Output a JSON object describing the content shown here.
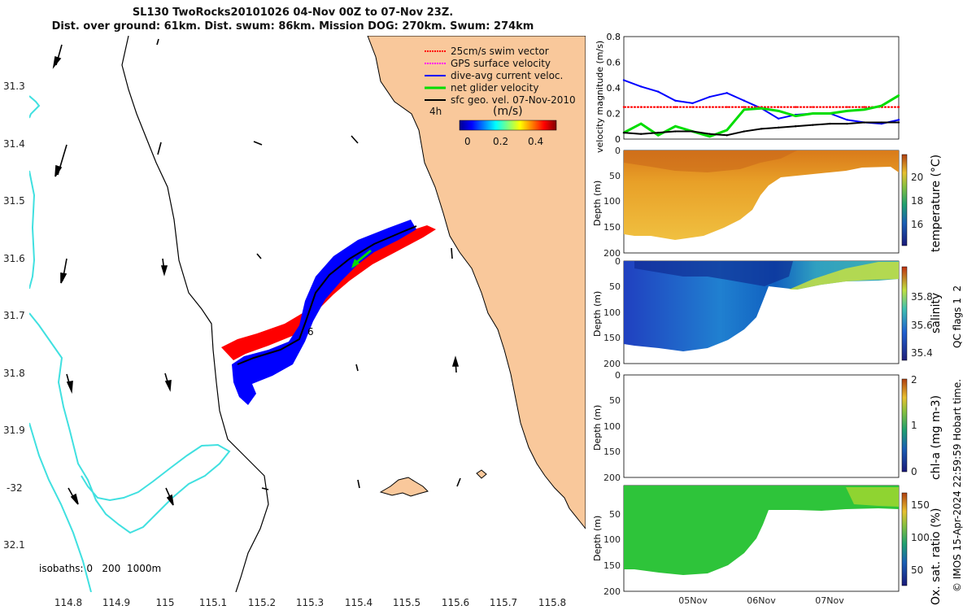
{
  "title": {
    "line1": "SL130 TwoRocks20101026 04-Nov 00Z to 07-Nov 23Z.",
    "line2": "Dist. over ground: 61km. Dist. swum: 86km. Mission DOG: 270km. Swum: 274km"
  },
  "map": {
    "lat_ticks": [
      "31.3",
      "31.4",
      "31.5",
      "31.6",
      "31.7",
      "31.8",
      "31.9",
      "-32",
      "32.1"
    ],
    "lon_ticks": [
      "114.8",
      "114.9",
      "115",
      "115.1",
      "115.2",
      "115.3",
      "115.4",
      "115.5",
      "115.6",
      "115.7",
      "115.8"
    ],
    "legend": [
      {
        "label": "25cm/s swim vector",
        "color": "#ff0000"
      },
      {
        "label": "GPS surface velocity",
        "color": "#ff00ff"
      },
      {
        "label": "dive-avg current veloc.",
        "color": "#0000ff"
      },
      {
        "label": "net glider velocity",
        "color": "#00dd00"
      },
      {
        "label": "sfc geo. vel. 07-Nov-2010",
        "color": "#000000"
      }
    ],
    "time_marker": "4h",
    "colorbar": {
      "unit": "(m/s)",
      "ticks": [
        "0",
        "0.2",
        "0.4"
      ]
    },
    "track_label": "6",
    "isobaths_label": "isobaths: 0   200  1000m",
    "colors": {
      "land": "#f9c89b",
      "isobath": "#40e0e0",
      "dive_avg": "#0000ff",
      "swim": "#ff0000",
      "net": "#00dd00"
    }
  },
  "chart_data": [
    {
      "type": "line",
      "title": "",
      "ylabel": "velocity magnitude (m/s)",
      "ylim": [
        0,
        0.8
      ],
      "yticks": [
        "0",
        "0.2",
        "0.4",
        "0.6",
        "0.8"
      ],
      "x": [
        0,
        6,
        12,
        18,
        24,
        30,
        36,
        42,
        48,
        54,
        60,
        66,
        72,
        78,
        84,
        90,
        96
      ],
      "series": [
        {
          "name": "dive-avg current veloc.",
          "color": "#0000ff",
          "values": [
            0.46,
            0.41,
            0.37,
            0.3,
            0.28,
            0.33,
            0.36,
            0.3,
            0.24,
            0.16,
            0.19,
            0.2,
            0.2,
            0.15,
            0.13,
            0.12,
            0.15
          ]
        },
        {
          "name": "25cm/s swim vector",
          "color": "#ff0000",
          "values": [
            0.25,
            0.25,
            0.25,
            0.25,
            0.25,
            0.25,
            0.25,
            0.25,
            0.25,
            0.25,
            0.25,
            0.25,
            0.25,
            0.25,
            0.25,
            0.25,
            0.25
          ]
        },
        {
          "name": "net glider velocity",
          "color": "#00dd00",
          "values": [
            0.05,
            0.12,
            0.03,
            0.1,
            0.06,
            0.02,
            0.07,
            0.23,
            0.24,
            0.22,
            0.18,
            0.2,
            0.2,
            0.22,
            0.23,
            0.26,
            0.34
          ]
        },
        {
          "name": "sfc geo. vel.",
          "color": "#000000",
          "values": [
            0.05,
            0.04,
            0.05,
            0.06,
            0.06,
            0.04,
            0.03,
            0.06,
            0.08,
            0.09,
            0.1,
            0.11,
            0.12,
            0.12,
            0.13,
            0.13,
            0.13
          ]
        }
      ]
    },
    {
      "type": "heatmap",
      "variable": "temperature (°C)",
      "ylabel": "Depth (m)",
      "ylim": [
        200,
        0
      ],
      "yticks": [
        "0",
        "50",
        "100",
        "150",
        "200"
      ],
      "colorbar_ticks": [
        "16",
        "18",
        "20"
      ],
      "colorbar_range": [
        15,
        21.5
      ]
    },
    {
      "type": "heatmap",
      "variable": "salinity",
      "ylabel": "Depth (m)",
      "ylim": [
        200,
        0
      ],
      "yticks": [
        "0",
        "50",
        "100",
        "150",
        "200"
      ],
      "colorbar_ticks": [
        "35.4",
        "35.6",
        "35.8"
      ],
      "colorbar_range": [
        35.3,
        35.95
      ]
    },
    {
      "type": "heatmap",
      "variable": "chl-a (mg m-3)",
      "ylabel": "Depth (m)",
      "ylim": [
        200,
        0
      ],
      "yticks": [
        "0",
        "50",
        "100",
        "150",
        "200"
      ],
      "colorbar_ticks": [
        "0",
        "1",
        "2"
      ],
      "colorbar_range": [
        0,
        2
      ]
    },
    {
      "type": "heatmap",
      "variable": "Ox. sat. ratio (%)",
      "ylabel": "Depth (m)",
      "ylim": [
        200,
        0
      ],
      "yticks": [
        "50",
        "100",
        "150",
        "200"
      ],
      "colorbar_ticks": [
        "50",
        "100",
        "150"
      ],
      "colorbar_range": [
        25,
        175
      ],
      "xticks": [
        "05Nov",
        "06Nov",
        "07Nov"
      ]
    }
  ],
  "side_label": {
    "qc": "QC flags 1  2",
    "credit": "© IMOS 15-Apr-2024 22:59:59 Hobart time."
  }
}
